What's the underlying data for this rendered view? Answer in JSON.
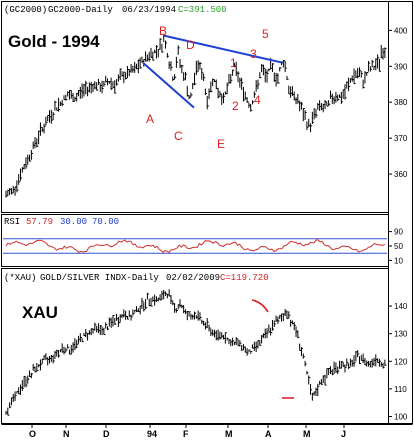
{
  "colors": {
    "frame": "#000000",
    "price_bar": "#000000",
    "annotation_red": "#e02020",
    "trend_line_blue": "#1f3fd0",
    "rsi_line": "#d03030",
    "rsi_band": "#3050d0",
    "close_green": "#2aa02a",
    "rsi_value_red": "#d02020",
    "rsi_level_blue": "#2040c0"
  },
  "top_panel": {
    "symbol": "(GC2000)",
    "description": "GC2000-Daily",
    "date": "06/23/1994",
    "close_label": "C=391.500",
    "big_title": "Gold - 1994",
    "y_ticks": [
      "400",
      "390",
      "380",
      "370",
      "360"
    ]
  },
  "rsi_panel": {
    "label": "RSI",
    "value": "57.79",
    "level_low": "30.00",
    "level_high": "70.00",
    "y_ticks": [
      "90",
      "50",
      "10"
    ]
  },
  "bottom_panel": {
    "symbol": "(*XAU)",
    "description": "GOLD/SILVER INDX-Daily",
    "date": "02/02/2009",
    "close_label": "C=119.720",
    "big_title": "XAU",
    "y_ticks": [
      "140",
      "130",
      "120",
      "110",
      "100"
    ]
  },
  "x_axis": {
    "ticks": [
      "O",
      "N",
      "D",
      "94",
      "F",
      "M",
      "A",
      "M",
      "J"
    ]
  },
  "annotations": {
    "labels": [
      "A",
      "B",
      "C",
      "D",
      "E",
      "1",
      "2",
      "3",
      "4",
      "5"
    ]
  },
  "chart_data": [
    {
      "type": "ohlc",
      "panel": "top",
      "title": "Gold - 1994",
      "ylim": [
        350,
        404
      ],
      "y_ticks": [
        400,
        390,
        380,
        370,
        360
      ],
      "x_ticks": [
        "O",
        "N",
        "D",
        "94",
        "F",
        "M",
        "A",
        "M",
        "J"
      ],
      "x_index_range": [
        0,
        190
      ],
      "path": [
        [
          0,
          354
        ],
        [
          6,
          356
        ],
        [
          11,
          360
        ],
        [
          16,
          364
        ],
        [
          21,
          368
        ],
        [
          26,
          372
        ],
        [
          31,
          375
        ],
        [
          36,
          378
        ],
        [
          41,
          380
        ],
        [
          46,
          382
        ],
        [
          51,
          381
        ],
        [
          56,
          383
        ],
        [
          61,
          384
        ],
        [
          66,
          385
        ],
        [
          71,
          384
        ],
        [
          76,
          386
        ],
        [
          81,
          385
        ],
        [
          86,
          387
        ],
        [
          91,
          388
        ],
        [
          96,
          389
        ],
        [
          101,
          391
        ],
        [
          106,
          393
        ],
        [
          111,
          394
        ],
        [
          116,
          396
        ],
        [
          118,
          398
        ],
        [
          121,
          392
        ],
        [
          125,
          386
        ],
        [
          128,
          394
        ],
        [
          131,
          389
        ],
        [
          134,
          386
        ],
        [
          137,
          380
        ],
        [
          140,
          386
        ],
        [
          143,
          391
        ],
        [
          147,
          387
        ],
        [
          150,
          380
        ],
        [
          154,
          387
        ],
        [
          158,
          383
        ],
        [
          162,
          381
        ],
        [
          166,
          385
        ],
        [
          170,
          390
        ],
        [
          174,
          386
        ],
        [
          178,
          382
        ],
        [
          182,
          379
        ],
        [
          186,
          383
        ],
        [
          190,
          389
        ],
        [
          194,
          387
        ],
        [
          198,
          390
        ],
        [
          202,
          386
        ],
        [
          206,
          392
        ],
        [
          208,
          390
        ],
        [
          211,
          383
        ],
        [
          214,
          382
        ],
        [
          218,
          380
        ],
        [
          222,
          376
        ],
        [
          226,
          373
        ],
        [
          230,
          377
        ],
        [
          234,
          379
        ],
        [
          238,
          378
        ],
        [
          242,
          381
        ],
        [
          246,
          382
        ],
        [
          250,
          381
        ],
        [
          254,
          384
        ],
        [
          258,
          387
        ],
        [
          262,
          388
        ],
        [
          266,
          386
        ],
        [
          270,
          389
        ],
        [
          274,
          390
        ],
        [
          278,
          391
        ],
        [
          280,
          395
        ],
        [
          283,
          393
        ]
      ],
      "close": 391.5
    },
    {
      "type": "line",
      "panel": "rsi",
      "title": "RSI",
      "ylim": [
        0,
        100
      ],
      "y_ticks": [
        90,
        50,
        10
      ],
      "levels": [
        30,
        70
      ],
      "last": 57.79
    },
    {
      "type": "ohlc",
      "panel": "bottom",
      "title": "XAU",
      "ylim": [
        98,
        148
      ],
      "y_ticks": [
        140,
        130,
        120,
        110,
        100
      ],
      "x_ticks": [
        "O",
        "N",
        "D",
        "94",
        "F",
        "M",
        "A",
        "M",
        "J"
      ],
      "path": [
        [
          0,
          102
        ],
        [
          4,
          105
        ],
        [
          8,
          108
        ],
        [
          13,
          112
        ],
        [
          18,
          115
        ],
        [
          23,
          118
        ],
        [
          28,
          120
        ],
        [
          33,
          121
        ],
        [
          38,
          123
        ],
        [
          43,
          125
        ],
        [
          48,
          124
        ],
        [
          53,
          127
        ],
        [
          58,
          129
        ],
        [
          63,
          131
        ],
        [
          68,
          132
        ],
        [
          73,
          131
        ],
        [
          78,
          134
        ],
        [
          83,
          135
        ],
        [
          88,
          137
        ],
        [
          93,
          136
        ],
        [
          98,
          139
        ],
        [
          103,
          141
        ],
        [
          108,
          143
        ],
        [
          113,
          142
        ],
        [
          118,
          144
        ],
        [
          120,
          145
        ],
        [
          123,
          142
        ],
        [
          126,
          139
        ],
        [
          130,
          141
        ],
        [
          133,
          138
        ],
        [
          137,
          136
        ],
        [
          141,
          137
        ],
        [
          145,
          135
        ],
        [
          149,
          133
        ],
        [
          153,
          131
        ],
        [
          157,
          129
        ],
        [
          161,
          130
        ],
        [
          165,
          128
        ],
        [
          169,
          126
        ],
        [
          173,
          127
        ],
        [
          177,
          125
        ],
        [
          181,
          123
        ],
        [
          185,
          125
        ],
        [
          189,
          127
        ],
        [
          193,
          129
        ],
        [
          197,
          132
        ],
        [
          201,
          134
        ],
        [
          205,
          136
        ],
        [
          209,
          138
        ],
        [
          211,
          136
        ],
        [
          214,
          133
        ],
        [
          217,
          130
        ],
        [
          220,
          124
        ],
        [
          223,
          118
        ],
        [
          226,
          111
        ],
        [
          228,
          106
        ],
        [
          231,
          109
        ],
        [
          235,
          113
        ],
        [
          239,
          115
        ],
        [
          243,
          117
        ],
        [
          247,
          118
        ],
        [
          251,
          119
        ],
        [
          255,
          118
        ],
        [
          259,
          120
        ],
        [
          263,
          122
        ],
        [
          267,
          120
        ],
        [
          271,
          119
        ],
        [
          275,
          121
        ],
        [
          279,
          120
        ],
        [
          283,
          119
        ]
      ],
      "close": 119.72
    }
  ]
}
